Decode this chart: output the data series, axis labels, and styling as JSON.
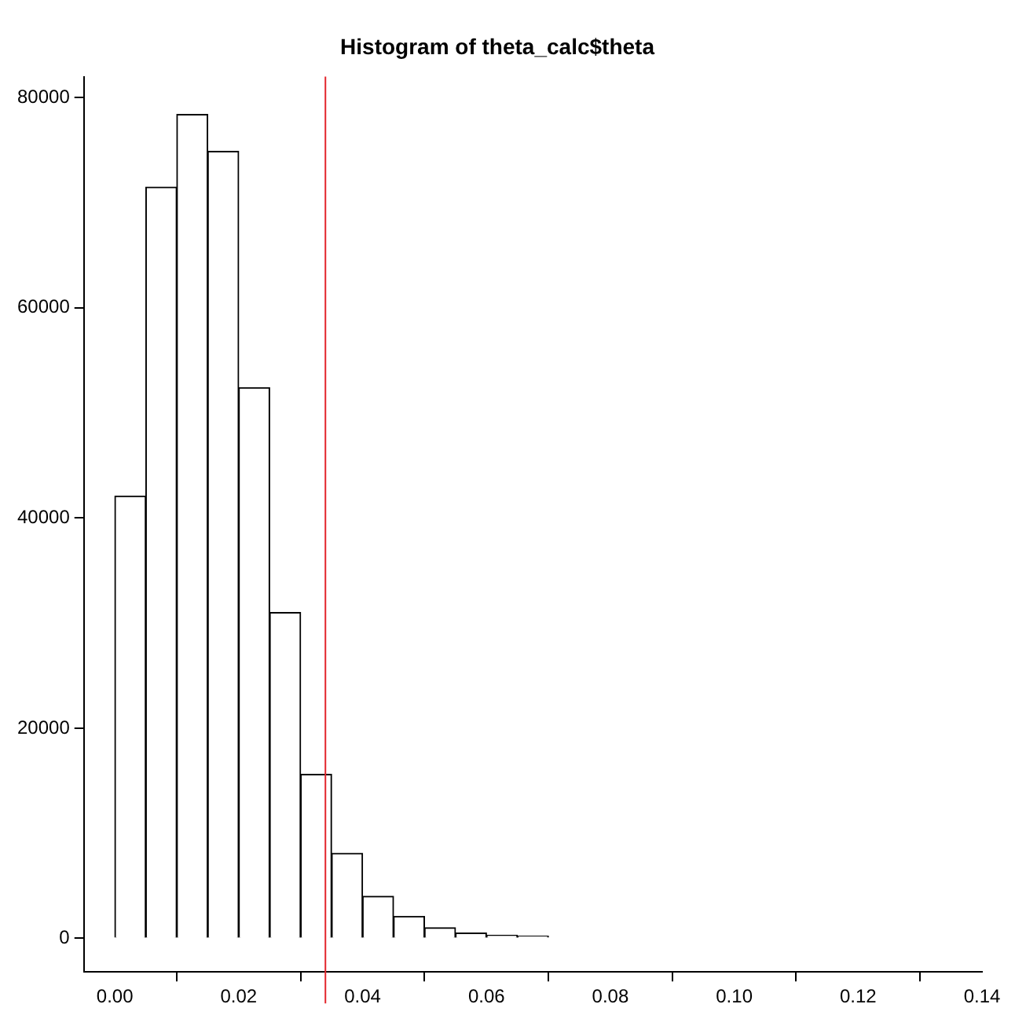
{
  "chart_data": {
    "type": "histogram",
    "title": "Histogram of theta_calc$theta",
    "bins": [
      0,
      0.005,
      0.01,
      0.015,
      0.02,
      0.025,
      0.03,
      0.035,
      0.04,
      0.045,
      0.05,
      0.055,
      0.06,
      0.065,
      0.07,
      0.075,
      0.08,
      0.085,
      0.09,
      0.095,
      0.1,
      0.105,
      0.11,
      0.115,
      0.12,
      0.125,
      0.13,
      0.135
    ],
    "values": [
      42100,
      71500,
      78400,
      74900,
      52400,
      31000,
      15600,
      8100,
      4000,
      2100,
      1000,
      500,
      300,
      200,
      null,
      0,
      0,
      0,
      0,
      0,
      0,
      0,
      0,
      0,
      0,
      0,
      0
    ],
    "color": "#ffffff",
    "xlim": [
      -0.005,
      0.14
    ],
    "xticks": [
      {
        "value": 0,
        "label": "0.00"
      },
      {
        "value": 0.02,
        "label": "0.02"
      },
      {
        "value": 0.04,
        "label": "0.04"
      },
      {
        "value": 0.06,
        "label": "0.06"
      },
      {
        "value": 0.08,
        "label": "0.08"
      },
      {
        "value": 0.1,
        "label": "0.10"
      },
      {
        "value": 0.12,
        "label": "0.12"
      },
      {
        "value": 0.14,
        "label": "0.14"
      }
    ],
    "ylim": [
      -3200,
      82000
    ],
    "yticks": [
      0,
      20000,
      40000,
      60000,
      80000
    ],
    "ref_lines": [
      {
        "axis": "x",
        "value": 0.034,
        "color": "#e3242b"
      }
    ],
    "grid": false,
    "legend": false
  }
}
